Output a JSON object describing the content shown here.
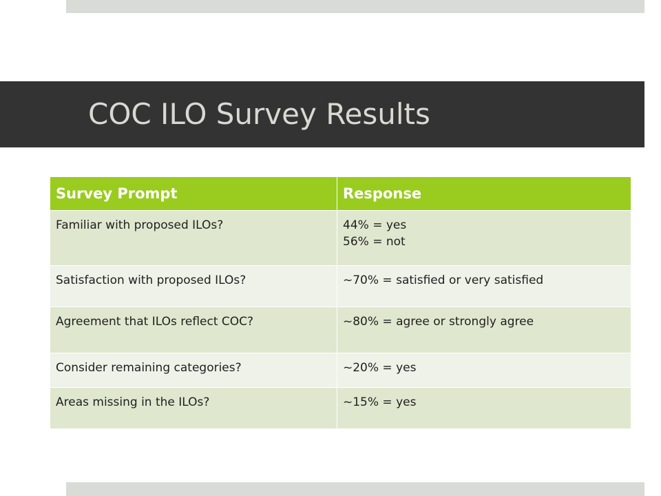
{
  "slide": {
    "title": "COC ILO Survey Results"
  },
  "table": {
    "headers": [
      "Survey Prompt",
      "Response"
    ],
    "rows": [
      {
        "prompt": "Familiar with proposed ILOs?",
        "response": [
          "44% = yes",
          "56% = not"
        ]
      },
      {
        "prompt": "Satisfaction with proposed ILOs?",
        "response": [
          "~70% = satisfied or very satisfied"
        ]
      },
      {
        "prompt": "Agreement that ILOs reflect COC?",
        "response": [
          "~80% = agree or strongly agree"
        ]
      },
      {
        "prompt": "Consider remaining categories?",
        "response": [
          "~20% = yes"
        ]
      },
      {
        "prompt": "Areas missing in the ILOs?",
        "response": [
          "~15% = yes"
        ]
      }
    ]
  },
  "colors": {
    "title_bar": "#333333",
    "title_text": "#d7d9d3",
    "header_fill": "#99cc1f",
    "row_fill_dark": "#dfe8cf",
    "row_fill_light": "#eef2e9",
    "accent_band": "#d9dcd6"
  }
}
